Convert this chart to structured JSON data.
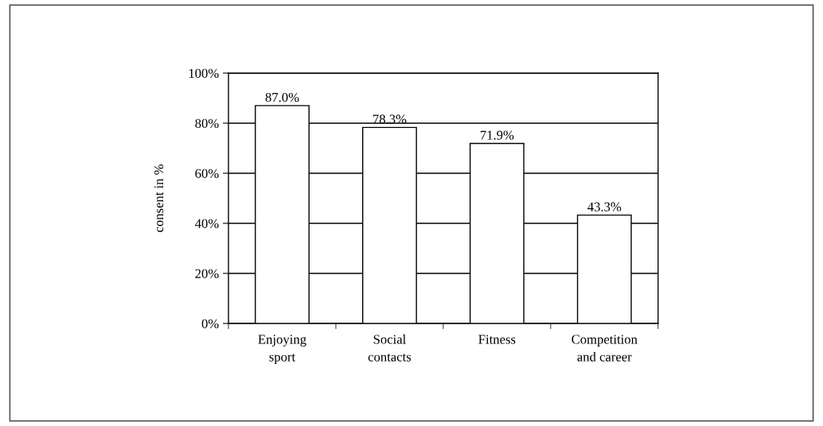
{
  "chart_data": {
    "type": "bar",
    "ylabel": "consent in %",
    "categories": [
      "Enjoying\nsport",
      "Social\ncontacts",
      "Fitness",
      "Competition\nand career"
    ],
    "values": [
      87.0,
      78.3,
      71.9,
      43.3
    ],
    "value_labels": [
      "87.0%",
      "78.3%",
      "71.9%",
      "43.3%"
    ],
    "color": "#ffffff",
    "ylim": [
      0,
      100
    ],
    "yticks": [
      {
        "value": 0,
        "label": "0%"
      },
      {
        "value": 20,
        "label": "20%"
      },
      {
        "value": 40,
        "label": "40%"
      },
      {
        "value": 60,
        "label": "60%"
      },
      {
        "value": 80,
        "label": "80%"
      },
      {
        "value": 100,
        "label": "100%"
      }
    ],
    "grid": "y"
  }
}
